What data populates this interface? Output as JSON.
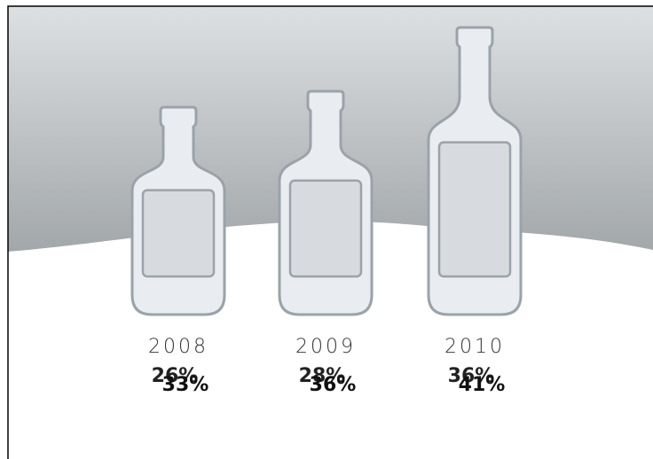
{
  "chart_data": {
    "type": "pictograph",
    "categories": [
      "2008",
      "2009",
      "2010"
    ],
    "series": [
      {
        "values": [
          26,
          28,
          36
        ],
        "value_labels": [
          "26%",
          "28%",
          "36%"
        ],
        "color": "#222222"
      },
      {
        "values": [
          33,
          36,
          41
        ],
        "value_labels": [
          "33%",
          "36%",
          "41%"
        ],
        "color": "#111111"
      }
    ],
    "bottle_color": "#e9edf1",
    "bottle_stroke": "#9aa3a9",
    "label_color": "#d7dbdf"
  }
}
